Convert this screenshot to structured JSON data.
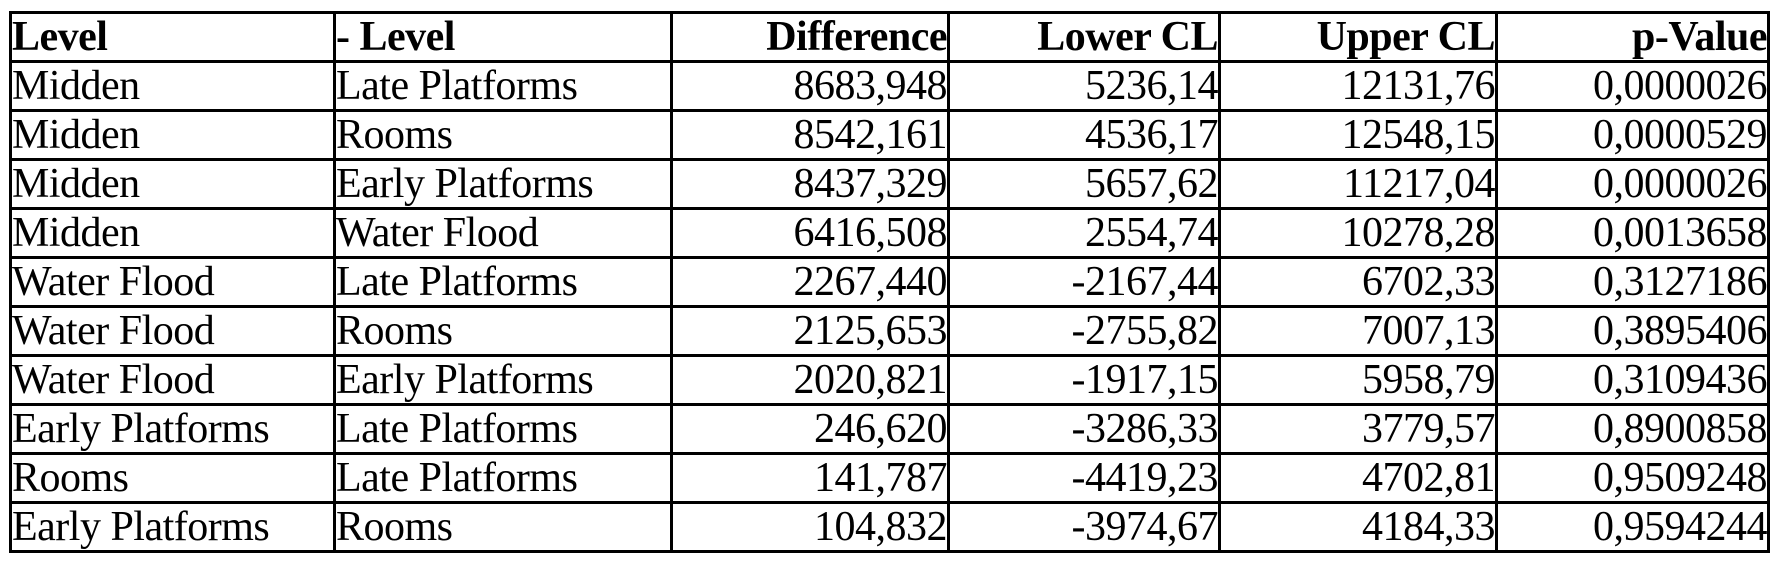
{
  "chart_data": {
    "type": "table",
    "columns": [
      "Level",
      "- Level",
      "Difference",
      "Lower CL",
      "Upper CL",
      "p-Value"
    ],
    "column_keys": [
      "level",
      "minus-level",
      "difference",
      "lower-cl",
      "upper-cl",
      "p-value"
    ],
    "column_alignments": [
      "left",
      "left",
      "right",
      "right",
      "right",
      "right"
    ],
    "decimal_separator": ",",
    "rows": [
      [
        "Midden",
        "Late Platforms",
        "8683,948",
        "5236,14",
        "12131,76",
        "0,0000026"
      ],
      [
        "Midden",
        "Rooms",
        "8542,161",
        "4536,17",
        "12548,15",
        "0,0000529"
      ],
      [
        "Midden",
        "Early Platforms",
        "8437,329",
        "5657,62",
        "11217,04",
        "0,0000026"
      ],
      [
        "Midden",
        "Water Flood",
        "6416,508",
        "2554,74",
        "10278,28",
        "0,0013658"
      ],
      [
        "Water Flood",
        "Late Platforms",
        "2267,440",
        "-2167,44",
        "6702,33",
        "0,3127186"
      ],
      [
        "Water Flood",
        "Rooms",
        "2125,653",
        "-2755,82",
        "7007,13",
        "0,3895406"
      ],
      [
        "Water Flood",
        "Early Platforms",
        "2020,821",
        "-1917,15",
        "5958,79",
        "0,3109436"
      ],
      [
        "Early Platforms",
        "Late Platforms",
        "246,620",
        "-3286,33",
        "3779,57",
        "0,8900858"
      ],
      [
        "Rooms",
        "Late Platforms",
        "141,787",
        "-4419,23",
        "4702,81",
        "0,9509248"
      ],
      [
        "Early Platforms",
        "Rooms",
        "104,832",
        "-3974,67",
        "4184,33",
        "0,9594244"
      ]
    ]
  },
  "style": {
    "border_color": "#000000",
    "text_color": "#000000",
    "background_color": "#ffffff"
  }
}
